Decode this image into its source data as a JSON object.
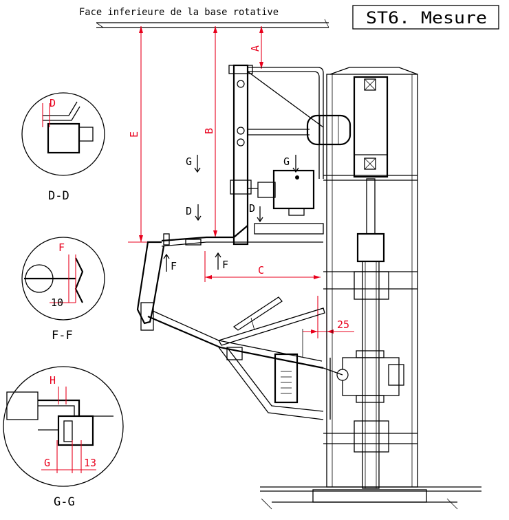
{
  "header": {
    "base_label": "Face inferieure de la base rotative",
    "title": "ST6. Mesure"
  },
  "dimensions": {
    "A": "A",
    "B": "B",
    "C": "C",
    "E": "E",
    "gap": "25"
  },
  "section_marks": {
    "G": "G",
    "D": "D",
    "F": "F"
  },
  "details": {
    "dd": {
      "label": "D-D",
      "dim": "D"
    },
    "ff": {
      "label": "F-F",
      "dim": "F",
      "dim2": "10"
    },
    "gg": {
      "label": "G-G",
      "dim_h": "H",
      "dim_g": "G",
      "dim_13": "13"
    }
  },
  "colors": {
    "dimension": "#e8001c",
    "linework": "#000000"
  }
}
